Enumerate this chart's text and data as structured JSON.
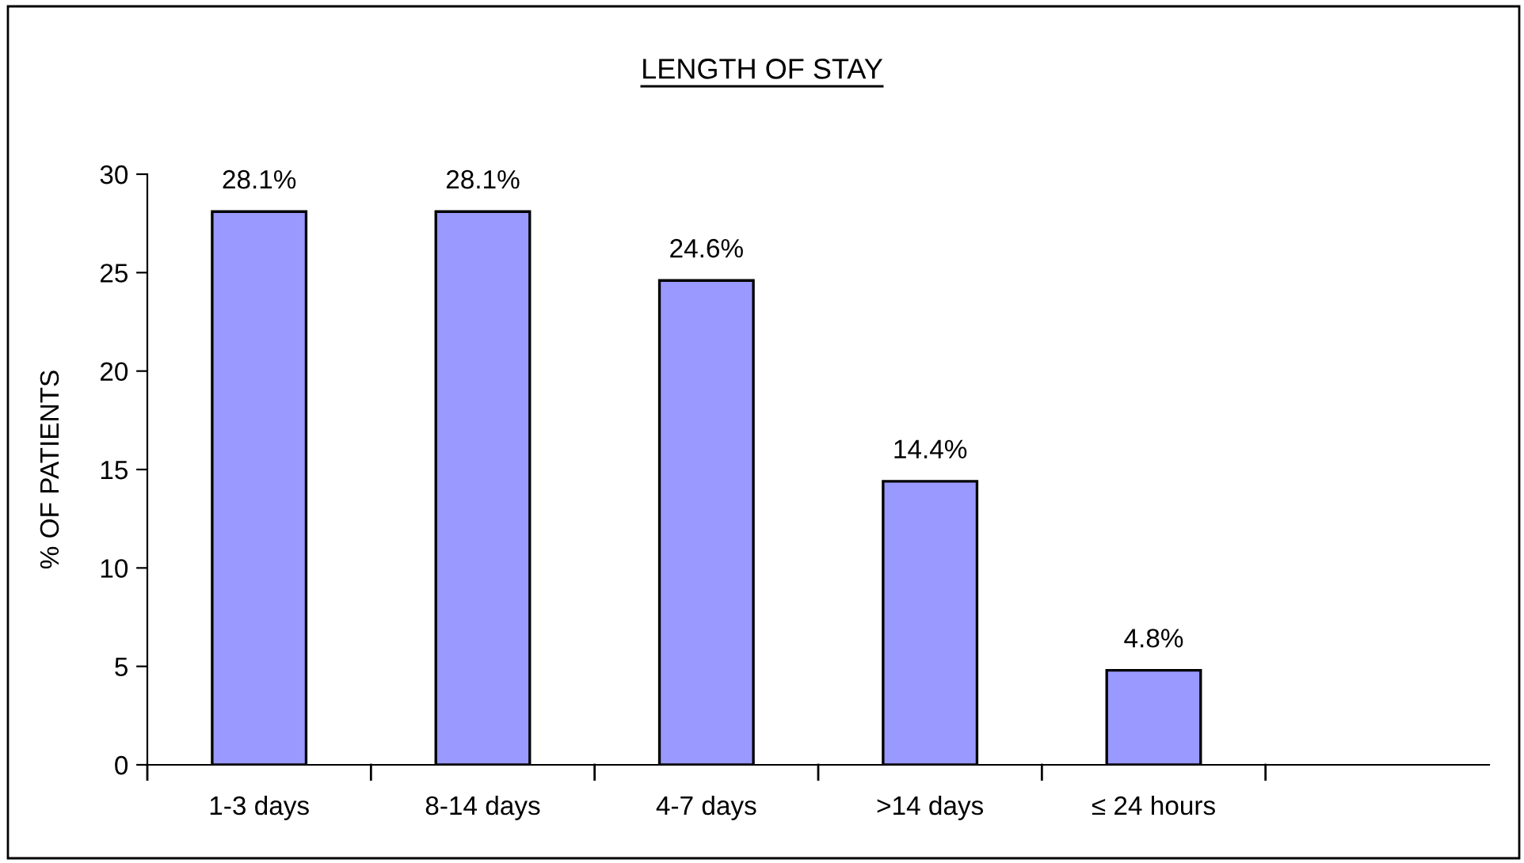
{
  "chart_data": {
    "type": "bar",
    "title": "LENGTH OF STAY",
    "ylabel": "% OF PATIENTS",
    "categories": [
      "1-3 days",
      "8-14 days",
      "4-7 days",
      ">14 days",
      "≤ 24 hours",
      null
    ],
    "values": [
      28.1,
      28.1,
      24.6,
      14.4,
      4.8,
      null
    ],
    "value_labels": [
      "28.1%",
      "28.1%",
      "24.6%",
      "14.4%",
      "4.8%",
      null
    ],
    "color": "#9999ff",
    "ylim": [
      0,
      30
    ],
    "yticks": [
      0,
      5,
      10,
      15,
      20,
      25,
      30
    ],
    "grid": false,
    "legend": false
  }
}
